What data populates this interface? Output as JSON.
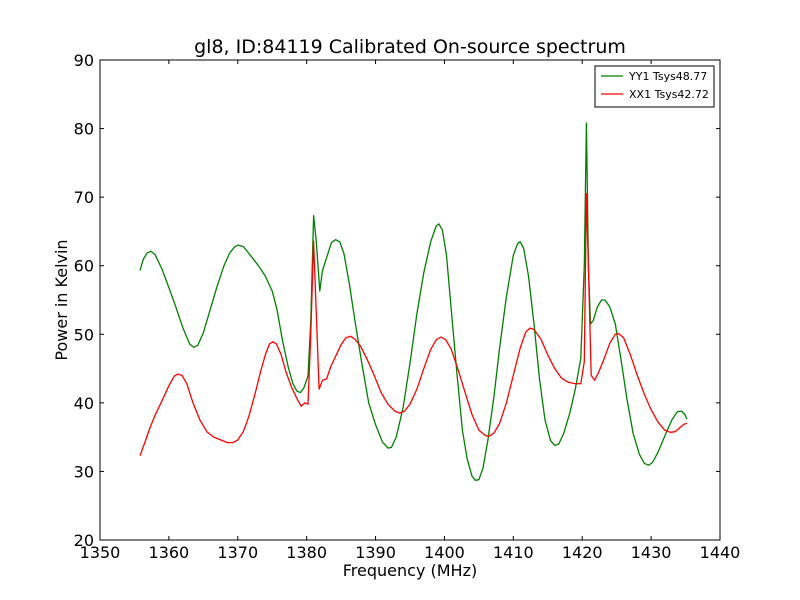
{
  "chart_data": {
    "type": "line",
    "title": "gl8, ID:84119 Calibrated On-source spectrum",
    "xlabel": "Frequency (MHz)",
    "ylabel": "Power in Kelvin",
    "xlim": [
      1350,
      1440
    ],
    "ylim": [
      20,
      90
    ],
    "xticks": [
      "1350",
      "1360",
      "1370",
      "1380",
      "1390",
      "1400",
      "1410",
      "1420",
      "1430",
      "1440"
    ],
    "yticks": [
      "20",
      "30",
      "40",
      "50",
      "60",
      "70",
      "80",
      "90"
    ],
    "grid": false,
    "legend_position": "top-right",
    "series": [
      {
        "name": "YY1 Tsys48.77",
        "color": "#008000",
        "points": [
          [
            1355.8,
            59.3
          ],
          [
            1356.3,
            61.0
          ],
          [
            1356.9,
            61.9
          ],
          [
            1357.4,
            62.1
          ],
          [
            1358.0,
            61.6
          ],
          [
            1359.0,
            59.5
          ],
          [
            1360.0,
            56.8
          ],
          [
            1361.0,
            54.0
          ],
          [
            1362.0,
            51.0
          ],
          [
            1363.0,
            48.6
          ],
          [
            1363.6,
            48.1
          ],
          [
            1364.2,
            48.4
          ],
          [
            1365.0,
            50.2
          ],
          [
            1366.0,
            53.6
          ],
          [
            1367.0,
            57.0
          ],
          [
            1368.0,
            60.0
          ],
          [
            1368.8,
            61.8
          ],
          [
            1369.5,
            62.7
          ],
          [
            1370.0,
            63.0
          ],
          [
            1370.8,
            62.8
          ],
          [
            1372.0,
            61.3
          ],
          [
            1373.0,
            60.0
          ],
          [
            1374.0,
            58.5
          ],
          [
            1375.0,
            56.3
          ],
          [
            1375.7,
            53.6
          ],
          [
            1376.5,
            49.0
          ],
          [
            1377.3,
            45.3
          ],
          [
            1378.0,
            42.8
          ],
          [
            1378.6,
            41.7
          ],
          [
            1379.1,
            41.5
          ],
          [
            1379.6,
            42.2
          ],
          [
            1380.2,
            43.9
          ],
          [
            1380.6,
            52.0
          ],
          [
            1381.0,
            67.3
          ],
          [
            1381.4,
            63.5
          ],
          [
            1381.9,
            56.3
          ],
          [
            1382.3,
            59.3
          ],
          [
            1383.0,
            61.5
          ],
          [
            1383.6,
            63.4
          ],
          [
            1384.2,
            63.8
          ],
          [
            1384.8,
            63.5
          ],
          [
            1385.4,
            61.8
          ],
          [
            1386.2,
            57.3
          ],
          [
            1387.0,
            52.0
          ],
          [
            1388.0,
            45.8
          ],
          [
            1389.0,
            40.0
          ],
          [
            1390.0,
            36.8
          ],
          [
            1391.0,
            34.3
          ],
          [
            1391.8,
            33.4
          ],
          [
            1392.3,
            33.5
          ],
          [
            1393.0,
            35.0
          ],
          [
            1394.0,
            39.3
          ],
          [
            1395.0,
            45.8
          ],
          [
            1396.0,
            53.0
          ],
          [
            1397.0,
            59.0
          ],
          [
            1398.0,
            63.5
          ],
          [
            1398.8,
            65.8
          ],
          [
            1399.2,
            66.1
          ],
          [
            1399.7,
            65.2
          ],
          [
            1400.3,
            61.5
          ],
          [
            1401.0,
            53.5
          ],
          [
            1401.8,
            44.5
          ],
          [
            1402.6,
            36.0
          ],
          [
            1403.3,
            31.8
          ],
          [
            1404.0,
            29.3
          ],
          [
            1404.5,
            28.7
          ],
          [
            1405.0,
            28.8
          ],
          [
            1405.6,
            30.5
          ],
          [
            1406.3,
            34.5
          ],
          [
            1407.2,
            41.0
          ],
          [
            1408.0,
            48.0
          ],
          [
            1409.0,
            55.5
          ],
          [
            1410.0,
            61.5
          ],
          [
            1410.6,
            63.2
          ],
          [
            1411.0,
            63.5
          ],
          [
            1411.5,
            62.5
          ],
          [
            1412.2,
            58.5
          ],
          [
            1413.0,
            51.5
          ],
          [
            1413.8,
            43.5
          ],
          [
            1414.6,
            37.5
          ],
          [
            1415.4,
            34.5
          ],
          [
            1416.0,
            33.8
          ],
          [
            1416.6,
            34.0
          ],
          [
            1417.3,
            35.5
          ],
          [
            1418.2,
            38.5
          ],
          [
            1419.0,
            42.0
          ],
          [
            1419.8,
            46.5
          ],
          [
            1420.3,
            60.0
          ],
          [
            1420.6,
            80.8
          ],
          [
            1420.9,
            60.0
          ],
          [
            1421.2,
            51.5
          ],
          [
            1421.6,
            52.0
          ],
          [
            1422.2,
            54.0
          ],
          [
            1422.8,
            55.0
          ],
          [
            1423.3,
            55.0
          ],
          [
            1424.0,
            54.0
          ],
          [
            1424.8,
            51.5
          ],
          [
            1425.6,
            46.5
          ],
          [
            1426.5,
            40.5
          ],
          [
            1427.4,
            35.5
          ],
          [
            1428.3,
            32.5
          ],
          [
            1429.0,
            31.2
          ],
          [
            1429.6,
            30.9
          ],
          [
            1430.2,
            31.3
          ],
          [
            1431.0,
            32.8
          ],
          [
            1432.0,
            35.2
          ],
          [
            1433.0,
            37.5
          ],
          [
            1433.8,
            38.7
          ],
          [
            1434.4,
            38.8
          ],
          [
            1434.9,
            38.3
          ],
          [
            1435.2,
            37.6
          ]
        ]
      },
      {
        "name": "XX1 Tsys42.72",
        "color": "#ff0000",
        "points": [
          [
            1355.8,
            32.3
          ],
          [
            1356.5,
            34.2
          ],
          [
            1357.3,
            36.5
          ],
          [
            1358.0,
            38.2
          ],
          [
            1359.0,
            40.3
          ],
          [
            1360.0,
            42.5
          ],
          [
            1360.8,
            43.9
          ],
          [
            1361.3,
            44.2
          ],
          [
            1361.9,
            44.0
          ],
          [
            1362.6,
            42.8
          ],
          [
            1363.5,
            40.0
          ],
          [
            1364.5,
            37.5
          ],
          [
            1365.5,
            35.8
          ],
          [
            1366.5,
            35.0
          ],
          [
            1367.5,
            34.6
          ],
          [
            1368.5,
            34.2
          ],
          [
            1369.3,
            34.2
          ],
          [
            1370.0,
            34.6
          ],
          [
            1370.8,
            35.8
          ],
          [
            1371.6,
            38.0
          ],
          [
            1372.5,
            41.3
          ],
          [
            1373.3,
            44.5
          ],
          [
            1374.0,
            47.0
          ],
          [
            1374.6,
            48.6
          ],
          [
            1375.1,
            48.9
          ],
          [
            1375.6,
            48.6
          ],
          [
            1376.3,
            47.0
          ],
          [
            1377.0,
            44.5
          ],
          [
            1377.8,
            42.3
          ],
          [
            1378.6,
            40.6
          ],
          [
            1379.2,
            39.5
          ],
          [
            1379.7,
            40.0
          ],
          [
            1380.2,
            39.8
          ],
          [
            1380.6,
            50.0
          ],
          [
            1381.0,
            63.6
          ],
          [
            1381.4,
            53.0
          ],
          [
            1381.8,
            42.0
          ],
          [
            1382.3,
            43.3
          ],
          [
            1382.9,
            43.5
          ],
          [
            1383.5,
            45.3
          ],
          [
            1384.3,
            47.0
          ],
          [
            1385.0,
            48.5
          ],
          [
            1385.7,
            49.5
          ],
          [
            1386.4,
            49.7
          ],
          [
            1387.0,
            49.3
          ],
          [
            1387.8,
            48.3
          ],
          [
            1388.8,
            46.3
          ],
          [
            1389.8,
            44.0
          ],
          [
            1390.8,
            41.5
          ],
          [
            1391.8,
            39.8
          ],
          [
            1392.8,
            38.8
          ],
          [
            1393.5,
            38.5
          ],
          [
            1394.2,
            38.8
          ],
          [
            1395.0,
            39.8
          ],
          [
            1396.0,
            42.0
          ],
          [
            1397.0,
            45.0
          ],
          [
            1398.0,
            47.8
          ],
          [
            1398.8,
            49.2
          ],
          [
            1399.5,
            49.6
          ],
          [
            1400.2,
            49.2
          ],
          [
            1401.0,
            47.8
          ],
          [
            1402.0,
            44.8
          ],
          [
            1403.0,
            41.5
          ],
          [
            1404.0,
            38.3
          ],
          [
            1405.0,
            36.0
          ],
          [
            1406.0,
            35.2
          ],
          [
            1406.6,
            35.2
          ],
          [
            1407.2,
            35.6
          ],
          [
            1408.0,
            37.0
          ],
          [
            1409.0,
            40.0
          ],
          [
            1410.0,
            44.0
          ],
          [
            1411.0,
            48.0
          ],
          [
            1411.8,
            50.3
          ],
          [
            1412.4,
            50.9
          ],
          [
            1413.0,
            50.7
          ],
          [
            1414.0,
            49.3
          ],
          [
            1415.0,
            47.0
          ],
          [
            1416.0,
            45.0
          ],
          [
            1417.0,
            43.6
          ],
          [
            1418.0,
            43.0
          ],
          [
            1419.0,
            42.8
          ],
          [
            1419.8,
            42.8
          ],
          [
            1420.3,
            46.0
          ],
          [
            1420.6,
            70.5
          ],
          [
            1420.9,
            60.0
          ],
          [
            1421.3,
            44.0
          ],
          [
            1421.8,
            43.3
          ],
          [
            1422.4,
            44.5
          ],
          [
            1423.2,
            46.5
          ],
          [
            1424.0,
            48.7
          ],
          [
            1424.8,
            50.0
          ],
          [
            1425.3,
            50.1
          ],
          [
            1426.0,
            49.5
          ],
          [
            1427.0,
            47.0
          ],
          [
            1428.0,
            44.0
          ],
          [
            1429.0,
            41.3
          ],
          [
            1430.0,
            39.0
          ],
          [
            1431.0,
            37.2
          ],
          [
            1432.0,
            36.0
          ],
          [
            1432.8,
            35.7
          ],
          [
            1433.5,
            35.8
          ],
          [
            1434.2,
            36.4
          ],
          [
            1434.8,
            36.9
          ],
          [
            1435.2,
            37.0
          ]
        ]
      }
    ]
  }
}
